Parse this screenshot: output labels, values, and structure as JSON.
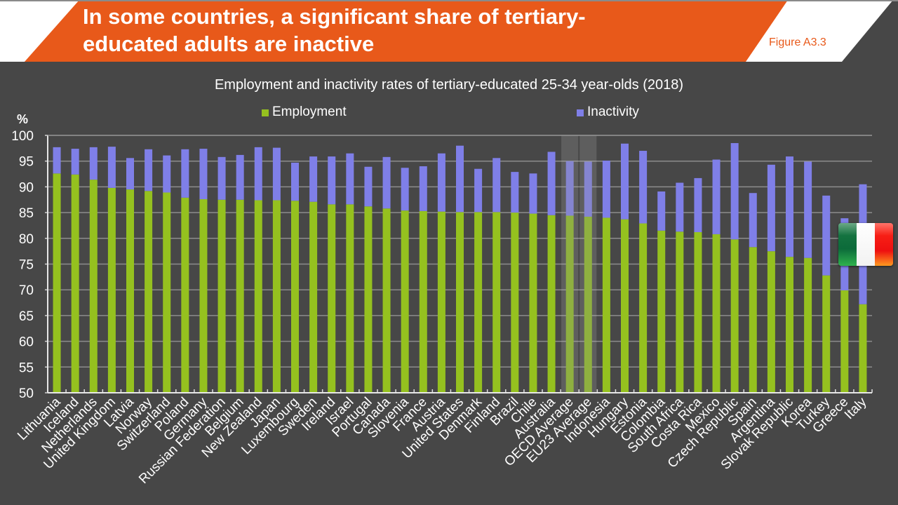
{
  "slide": {
    "title": "In some countries, a significant share of tertiary-educated adults are inactive",
    "title_line1": "In some countries, a significant share of tertiary-",
    "title_line2": "educated adults are inactive",
    "figure_label": "Figure A3.3",
    "colors": {
      "accent": "#e8591a",
      "background": "#474747",
      "employment": "#95c11f",
      "inactivity": "#7f7fe8"
    },
    "highlight_flag": "italy-flag"
  },
  "chart_data": {
    "type": "bar",
    "stacked": true,
    "title": "Employment and inactivity rates of tertiary-educated 25-34 year-olds (2018)",
    "ylabel": "%",
    "xlabel": "",
    "ylim": [
      50,
      100
    ],
    "yticks": [
      "50",
      "55",
      "60",
      "65",
      "70",
      "75",
      "80",
      "85",
      "90",
      "95",
      "100"
    ],
    "grid": true,
    "legend": {
      "placement": "top",
      "entries": [
        "Employment",
        "Inactivity"
      ]
    },
    "highlighted_categories": [
      "OECD Average",
      "EU23 Average"
    ],
    "categories": [
      "Lithuania",
      "Iceland",
      "Netherlands",
      "United Kingdom",
      "Latvia",
      "Norway",
      "Switzerland",
      "Poland",
      "Germany",
      "Russian Federation",
      "Belgium",
      "New Zealand",
      "Japan",
      "Luxembourg",
      "Sweden",
      "Ireland",
      "Israel",
      "Portugal",
      "Canada",
      "Slovenia",
      "France",
      "Austria",
      "United States",
      "Denmark",
      "Finland",
      "Brazil",
      "Chile",
      "Australia",
      "OECD Average",
      "EU23 Average",
      "Indonesia",
      "Hungary",
      "Estonia",
      "Colombia",
      "South Africa",
      "Costa Rica",
      "Mexico",
      "Czech Republic",
      "Spain",
      "Argentina",
      "Slovak Republic",
      "Korea",
      "Turkey",
      "Greece",
      "Italy"
    ],
    "series": [
      {
        "name": "Employment",
        "color": "#95c11f",
        "values": [
          92.6,
          92.4,
          91.4,
          89.8,
          89.5,
          89.2,
          88.9,
          87.9,
          87.6,
          87.5,
          87.5,
          87.4,
          87.4,
          87.3,
          87.1,
          86.6,
          86.6,
          86.2,
          85.8,
          85.4,
          85.3,
          85.2,
          85.1,
          85.1,
          85.1,
          85.0,
          84.8,
          84.5,
          84.4,
          84.2,
          84.0,
          83.7,
          82.9,
          81.5,
          81.3,
          81.2,
          80.8,
          79.8,
          78.3,
          77.5,
          76.4,
          76.2,
          72.8,
          69.9,
          67.2
        ]
      },
      {
        "name": "Inactivity",
        "color": "#7f7fe8",
        "values": [
          5.1,
          5.0,
          6.3,
          8.0,
          6.1,
          8.1,
          7.2,
          9.4,
          9.8,
          8.3,
          8.7,
          10.3,
          10.2,
          7.4,
          8.8,
          9.3,
          9.9,
          7.7,
          10.0,
          8.3,
          8.7,
          11.3,
          12.9,
          8.4,
          10.5,
          7.9,
          7.8,
          12.3,
          10.6,
          10.7,
          11.1,
          14.7,
          14.1,
          7.6,
          9.5,
          10.5,
          14.5,
          18.7,
          10.5,
          16.8,
          19.5,
          18.7,
          15.5,
          14.0,
          23.3
        ]
      }
    ]
  }
}
